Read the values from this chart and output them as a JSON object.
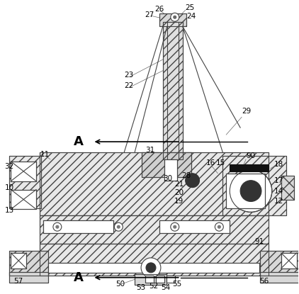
{
  "figw": 4.22,
  "figh": 4.15,
  "dpi": 100,
  "lc": "#444444",
  "lw": 0.8,
  "hatch_lw": 0.4,
  "bg": "white"
}
